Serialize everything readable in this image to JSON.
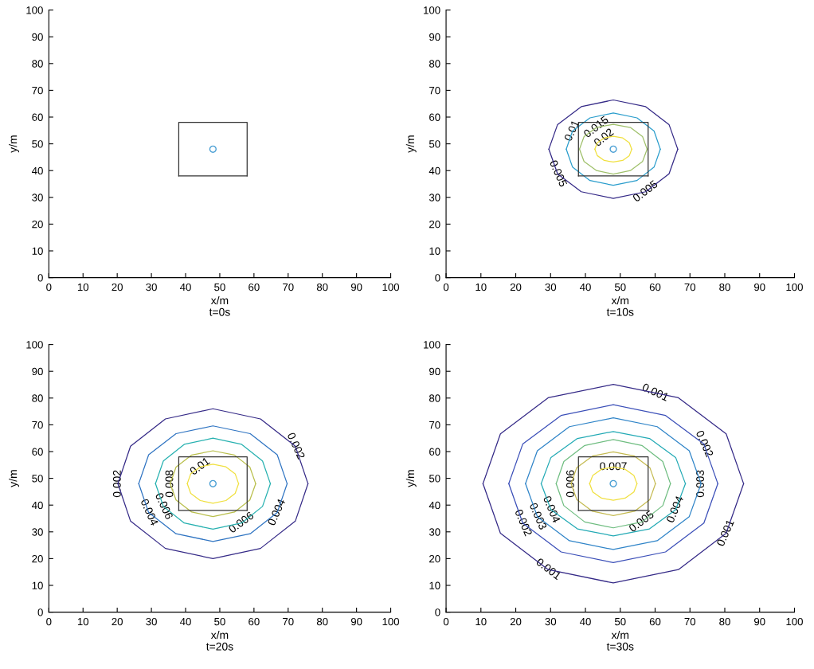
{
  "chart_data": [
    {
      "type": "line",
      "title": "t=0s",
      "xlabel": "x/m",
      "ylabel": "y/m",
      "xlim": [
        0,
        100
      ],
      "ylim": [
        0,
        100
      ],
      "xticks": [
        0,
        10,
        20,
        30,
        40,
        50,
        60,
        70,
        80,
        90,
        100
      ],
      "yticks": [
        0,
        10,
        20,
        30,
        40,
        50,
        60,
        70,
        80,
        90,
        100
      ],
      "series": [
        {
          "type": "line",
          "color": "#333333",
          "x": [
            38,
            38,
            58,
            58
          ],
          "values": [
            38,
            58,
            58,
            38
          ]
        },
        {
          "type": "line",
          "color": "#333333",
          "x": [
            38,
            58
          ],
          "values": [
            38,
            38
          ]
        },
        {
          "type": "scatter",
          "marker": "circle",
          "color": "#4a9fd4",
          "x": [
            48
          ],
          "values": [
            48
          ]
        }
      ]
    },
    {
      "type": "line",
      "title": "t=10s",
      "xlabel": "x/m",
      "ylabel": "y/m",
      "xlim": [
        0,
        100
      ],
      "ylim": [
        0,
        100
      ],
      "xticks": [
        0,
        10,
        20,
        30,
        40,
        50,
        60,
        70,
        80,
        90,
        100
      ],
      "yticks": [
        0,
        10,
        20,
        30,
        40,
        50,
        60,
        70,
        80,
        90,
        100
      ],
      "series": [
        {
          "color": "#352a87",
          "x": [
            29.5,
            32.0,
            38.8,
            48,
            57.3,
            64.0,
            66.5
          ],
          "values": [
            48,
            57.2,
            63.9,
            66.4,
            63.9,
            57.2,
            48
          ]
        },
        {
          "color": "#352a87",
          "x": [
            29.5,
            32.0,
            38.8,
            48,
            57.3,
            64.0,
            66.5
          ],
          "values": [
            48,
            38.8,
            32.1,
            29.6,
            32.1,
            38.8,
            48
          ]
        },
        {
          "color": "#2a9dcc",
          "x": [
            34.5,
            36.3,
            41.3,
            48,
            54.8,
            59.7,
            61.5
          ],
          "values": [
            48,
            54.8,
            59.7,
            61.5,
            59.7,
            54.8,
            48
          ]
        },
        {
          "color": "#2a9dcc",
          "x": [
            34.5,
            36.3,
            41.3,
            48,
            54.8,
            59.7,
            61.5
          ],
          "values": [
            48,
            41.3,
            36.3,
            34.5,
            36.3,
            41.3,
            48
          ]
        },
        {
          "color": "#9fc06a",
          "x": [
            38.3,
            39.6,
            43.2,
            48,
            52.9,
            56.4,
            57.7
          ],
          "values": [
            48,
            52.7,
            56.1,
            57.3,
            56.1,
            52.7,
            48
          ]
        },
        {
          "color": "#9fc06a",
          "x": [
            38.3,
            39.6,
            43.2,
            48,
            52.9,
            56.4,
            57.7
          ],
          "values": [
            48,
            43.4,
            40.0,
            38.7,
            40.0,
            43.4,
            48
          ]
        },
        {
          "color": "#f0e040",
          "x": [
            42.7,
            43.4,
            45.4,
            48,
            50.7,
            52.6,
            53.3
          ],
          "values": [
            48,
            50.4,
            52.2,
            52.8,
            52.2,
            50.4,
            48
          ]
        },
        {
          "color": "#f0e040",
          "x": [
            42.7,
            43.4,
            45.4,
            48,
            50.7,
            52.6,
            53.3
          ],
          "values": [
            48,
            45.6,
            43.8,
            43.2,
            43.8,
            45.6,
            48
          ]
        },
        {
          "type": "line",
          "color": "#333333",
          "x": [
            38,
            38,
            58,
            58
          ],
          "values": [
            38,
            58,
            58,
            38
          ]
        },
        {
          "type": "line",
          "color": "#333333",
          "x": [
            38,
            58
          ],
          "values": [
            38,
            38
          ]
        },
        {
          "type": "scatter",
          "marker": "circle",
          "color": "#4a9fd4",
          "x": [
            48
          ],
          "values": [
            48
          ]
        }
      ],
      "annotations": [
        {
          "text": "0.01",
          "x": 36.3,
          "y": 54.8
        },
        {
          "text": "0.015",
          "x": 43.2,
          "y": 56.1
        },
        {
          "text": "0.02",
          "x": 45.4,
          "y": 52.2
        },
        {
          "text": "0.005",
          "x": 32.0,
          "y": 38.8
        },
        {
          "text": "0.005",
          "x": 57.3,
          "y": 32.1
        }
      ]
    },
    {
      "type": "line",
      "title": "t=20s",
      "xlabel": "x/m",
      "ylabel": "y/m",
      "xlim": [
        0,
        100
      ],
      "ylim": [
        0,
        100
      ],
      "xticks": [
        0,
        10,
        20,
        30,
        40,
        50,
        60,
        70,
        80,
        90,
        100
      ],
      "yticks": [
        0,
        10,
        20,
        30,
        40,
        50,
        60,
        70,
        80,
        90,
        100
      ],
      "series": [
        {
          "color": "#352a87",
          "x": [
            20.2,
            23.9,
            34.1,
            48,
            61.9,
            72.1,
            75.8
          ],
          "values": [
            48,
            62,
            72.2,
            76,
            72.2,
            62,
            48
          ]
        },
        {
          "color": "#352a87",
          "x": [
            20.2,
            23.9,
            34.1,
            48,
            61.9,
            72.1,
            75.8
          ],
          "values": [
            48,
            34,
            23.8,
            20,
            23.8,
            34,
            48
          ]
        },
        {
          "color": "#2f74c2",
          "x": [
            26.3,
            29.2,
            37.2,
            48,
            58.9,
            66.8,
            69.7
          ],
          "values": [
            48,
            58.8,
            66.7,
            69.6,
            66.7,
            58.8,
            48
          ]
        },
        {
          "color": "#2f74c2",
          "x": [
            26.3,
            29.2,
            37.2,
            48,
            58.9,
            66.8,
            69.7
          ],
          "values": [
            48,
            37.2,
            29.3,
            26.4,
            29.3,
            37.2,
            48
          ]
        },
        {
          "color": "#27b1b0",
          "x": [
            31.2,
            33.5,
            39.6,
            48,
            56.4,
            62.5,
            64.8
          ],
          "values": [
            48,
            56.5,
            62.7,
            65,
            62.7,
            56.5,
            48
          ]
        },
        {
          "color": "#27b1b0",
          "x": [
            31.2,
            33.5,
            39.6,
            48,
            56.4,
            62.5,
            64.8
          ],
          "values": [
            48,
            39.5,
            33.3,
            31,
            33.3,
            39.5,
            48
          ]
        },
        {
          "color": "#b9bf4c",
          "x": [
            35.5,
            37.2,
            41.8,
            48,
            54.3,
            58.8,
            60.5
          ],
          "values": [
            48,
            54.2,
            58.7,
            60.3,
            58.7,
            54.2,
            48
          ]
        },
        {
          "color": "#b9bf4c",
          "x": [
            35.5,
            37.2,
            41.8,
            48,
            54.3,
            58.8,
            60.5
          ],
          "values": [
            48,
            41.9,
            37.4,
            35.7,
            37.4,
            41.9,
            48
          ]
        },
        {
          "color": "#f0e040",
          "x": [
            40.5,
            41.5,
            44.3,
            48,
            51.8,
            54.5,
            55.5
          ],
          "values": [
            48,
            51.7,
            54.3,
            55.3,
            54.3,
            51.7,
            48
          ]
        },
        {
          "color": "#f0e040",
          "x": [
            40.5,
            41.5,
            44.3,
            48,
            51.8,
            54.5,
            55.5
          ],
          "values": [
            48,
            44.4,
            41.7,
            40.7,
            41.7,
            44.4,
            48
          ]
        },
        {
          "type": "line",
          "color": "#333333",
          "x": [
            38,
            38,
            58,
            58
          ],
          "values": [
            38,
            58,
            58,
            38
          ]
        },
        {
          "type": "line",
          "color": "#333333",
          "x": [
            38,
            58
          ],
          "values": [
            38,
            38
          ]
        },
        {
          "type": "scatter",
          "marker": "circle",
          "color": "#4a9fd4",
          "x": [
            48
          ],
          "values": [
            48
          ]
        }
      ],
      "annotations": [
        {
          "text": "0.002",
          "x": 72.1,
          "y": 62
        },
        {
          "text": "0.01",
          "x": 44.3,
          "y": 54.3
        },
        {
          "text": "0.008",
          "x": 35.5,
          "y": 48
        },
        {
          "text": "0.002",
          "x": 20.2,
          "y": 48
        },
        {
          "text": "0.004",
          "x": 29.2,
          "y": 37.2
        },
        {
          "text": "0.006",
          "x": 33.5,
          "y": 39.5
        },
        {
          "text": "0.006",
          "x": 56.4,
          "y": 33.3
        },
        {
          "text": "0.004",
          "x": 66.8,
          "y": 37.2
        }
      ]
    },
    {
      "type": "line",
      "title": "t=30s",
      "xlabel": "x/m",
      "ylabel": "y/m",
      "xlim": [
        0,
        100
      ],
      "ylim": [
        0,
        100
      ],
      "xticks": [
        0,
        10,
        20,
        30,
        40,
        50,
        60,
        70,
        80,
        90,
        100
      ],
      "yticks": [
        0,
        10,
        20,
        30,
        40,
        50,
        60,
        70,
        80,
        90,
        100
      ],
      "series": [
        {
          "color": "#352a87",
          "x": [
            10.6,
            15.6,
            29.3,
            48,
            66.7,
            80.4,
            85.4
          ],
          "values": [
            48,
            66.6,
            80.1,
            85.1,
            80.1,
            66.6,
            48
          ]
        },
        {
          "color": "#352a87",
          "x": [
            10.6,
            15.6,
            29.3,
            48,
            66.7,
            80.4,
            85.4
          ],
          "values": [
            48,
            29.5,
            15.9,
            10.9,
            15.9,
            29.5,
            48
          ]
        },
        {
          "color": "#3b4fb8",
          "x": [
            18,
            22,
            33,
            48,
            63,
            74,
            78
          ],
          "values": [
            48,
            62.8,
            73.5,
            77.5,
            73.5,
            62.8,
            48
          ]
        },
        {
          "color": "#3b4fb8",
          "x": [
            18,
            22,
            33,
            48,
            63,
            74,
            78
          ],
          "values": [
            48,
            33.3,
            22.5,
            18.5,
            22.5,
            33.3,
            48
          ]
        },
        {
          "color": "#2f84c8",
          "x": [
            22.8,
            26.2,
            35.4,
            48,
            60.6,
            69.8,
            73.2
          ],
          "values": [
            48,
            60.3,
            69.3,
            72.6,
            69.3,
            60.3,
            48
          ]
        },
        {
          "color": "#2f84c8",
          "x": [
            22.8,
            26.2,
            35.4,
            48,
            60.6,
            69.8,
            73.2
          ],
          "values": [
            48,
            35.7,
            26.7,
            23.4,
            26.7,
            35.7,
            48
          ]
        },
        {
          "color": "#23aab5",
          "x": [
            27.3,
            30.1,
            37.7,
            48,
            58.4,
            65.9,
            68.7
          ],
          "values": [
            48,
            57.8,
            64.9,
            67.5,
            64.9,
            57.8,
            48
          ]
        },
        {
          "color": "#23aab5",
          "x": [
            27.3,
            30.1,
            37.7,
            48,
            58.4,
            65.9,
            68.7
          ],
          "values": [
            48,
            38.3,
            31.1,
            28.5,
            31.1,
            38.3,
            48
          ]
        },
        {
          "color": "#6fbd80",
          "x": [
            31.6,
            33.8,
            39.8,
            48,
            56.2,
            62.2,
            64.4
          ],
          "values": [
            48,
            56.3,
            62.3,
            64.5,
            62.3,
            56.3,
            48
          ]
        },
        {
          "color": "#6fbd80",
          "x": [
            31.6,
            33.8,
            39.8,
            48,
            56.2,
            62.2,
            64.4
          ],
          "values": [
            48,
            39.8,
            33.7,
            31.5,
            33.7,
            39.8,
            48
          ]
        },
        {
          "color": "#c5bb52",
          "x": [
            35.9,
            37.5,
            42,
            48,
            54.1,
            58.5,
            60.1
          ],
          "values": [
            48,
            54,
            58.3,
            59.9,
            58.3,
            54,
            48
          ]
        },
        {
          "color": "#c5bb52",
          "x": [
            35.9,
            37.5,
            42,
            48,
            54.1,
            58.5,
            60.1
          ],
          "values": [
            48,
            42.1,
            37.7,
            36.1,
            37.7,
            42.1,
            48
          ]
        },
        {
          "color": "#f0e040",
          "x": [
            41.2,
            42.1,
            44.6,
            48,
            51.4,
            53.9,
            54.8
          ],
          "values": [
            48,
            51.1,
            53.4,
            54.2,
            53.4,
            51.1,
            48
          ]
        },
        {
          "color": "#f0e040",
          "x": [
            41.2,
            42.1,
            44.6,
            48,
            51.4,
            53.9,
            54.8
          ],
          "values": [
            48,
            44.9,
            42.6,
            41.8,
            42.6,
            44.9,
            48
          ]
        },
        {
          "type": "line",
          "color": "#333333",
          "x": [
            38,
            38,
            58,
            58
          ],
          "values": [
            38,
            58,
            58,
            38
          ]
        },
        {
          "type": "line",
          "color": "#333333",
          "x": [
            38,
            58
          ],
          "values": [
            38,
            38
          ]
        },
        {
          "type": "scatter",
          "marker": "circle",
          "color": "#4a9fd4",
          "x": [
            48
          ],
          "values": [
            48
          ]
        }
      ],
      "annotations": [
        {
          "text": "0.001",
          "x": 60,
          "y": 81.9
        },
        {
          "text": "0.002",
          "x": 74,
          "y": 62.8
        },
        {
          "text": "0.003",
          "x": 73.2,
          "y": 48
        },
        {
          "text": "0.007",
          "x": 48,
          "y": 54.2
        },
        {
          "text": "0.006",
          "x": 35.9,
          "y": 48
        },
        {
          "text": "0.002",
          "x": 22,
          "y": 33.3
        },
        {
          "text": "0.003",
          "x": 26.2,
          "y": 35.7
        },
        {
          "text": "0.004",
          "x": 30.1,
          "y": 38.3
        },
        {
          "text": "0.005",
          "x": 56.2,
          "y": 33.7
        },
        {
          "text": "0.004",
          "x": 65.9,
          "y": 38.3
        },
        {
          "text": "0.001",
          "x": 80.4,
          "y": 29.5
        },
        {
          "text": "0.001",
          "x": 29.3,
          "y": 15.9
        }
      ]
    }
  ]
}
